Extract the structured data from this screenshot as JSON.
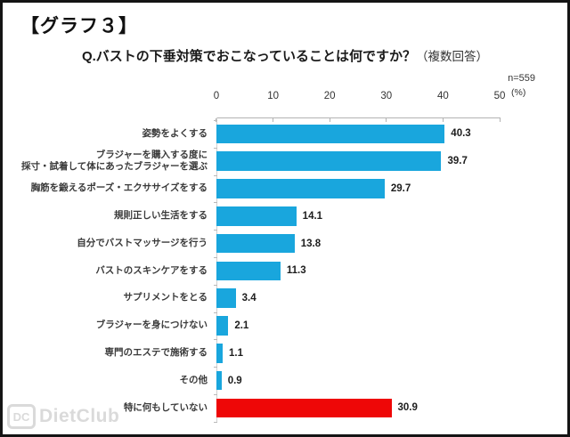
{
  "page": {
    "corner_title": "【グラフ３】",
    "question_main": "Q.バストの下垂対策でおこなっていることは何ですか？",
    "question_note": "（複数回答）",
    "sample_size": "n=559",
    "percent_label": "(%)"
  },
  "watermark": {
    "logo": "DC",
    "text": "DietClub"
  },
  "chart_data": {
    "type": "bar",
    "orientation": "horizontal",
    "title": "Q.バストの下垂対策でおこなっていることは何ですか？（複数回答）",
    "n": 559,
    "xlabel": "(%)",
    "xlim": [
      0,
      50
    ],
    "x_ticks": [
      0,
      10,
      20,
      30,
      40,
      50
    ],
    "grid": false,
    "legend": "none",
    "categories": [
      "姿勢をよくする",
      "ブラジャーを購入する度に\n採寸・試着して体にあったブラジャーを選ぶ",
      "胸筋を鍛えるポーズ・エクササイズをする",
      "規則正しい生活をする",
      "自分でバストマッサージを行う",
      "バストのスキンケアをする",
      "サプリメントをとる",
      "ブラジャーを身につけない",
      "専門のエステで施術する",
      "その他",
      "特に何もしていない"
    ],
    "values": [
      40.3,
      39.7,
      29.7,
      14.1,
      13.8,
      11.3,
      3.4,
      2.1,
      1.1,
      0.9,
      30.9
    ],
    "colors": {
      "bar_default": "#19a6dd",
      "bar_highlight": "#ee0707",
      "highlight_index": 10,
      "axis": "#b3b3b3"
    }
  }
}
